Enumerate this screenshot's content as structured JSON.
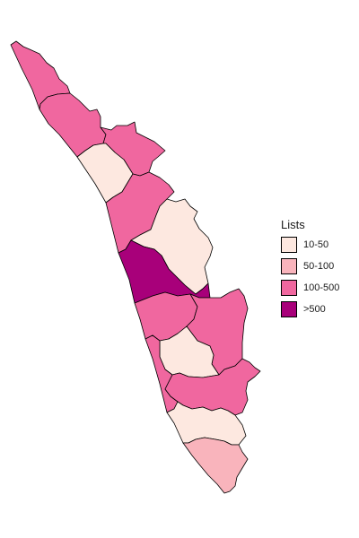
{
  "legend": {
    "title": "Lists",
    "items": [
      {
        "label": "10-50",
        "color": "#FDE8E0"
      },
      {
        "label": "50-100",
        "color": "#F9B4BC"
      },
      {
        "label": "100-500",
        "color": "#F0679F"
      },
      {
        "label": ">500",
        "color": "#A8007A"
      }
    ]
  },
  "districts": [
    {
      "category": "100-500"
    },
    {
      "category": "100-500"
    },
    {
      "category": "100-500"
    },
    {
      "category": "10-50"
    },
    {
      "category": "100-500"
    },
    {
      "category": "10-50"
    },
    {
      "category": ">500"
    },
    {
      "category": "100-500"
    },
    {
      "category": "100-500"
    },
    {
      "category": "10-50"
    },
    {
      "category": "100-500"
    },
    {
      "category": "100-500"
    },
    {
      "category": "10-50"
    },
    {
      "category": "50-100"
    }
  ]
}
